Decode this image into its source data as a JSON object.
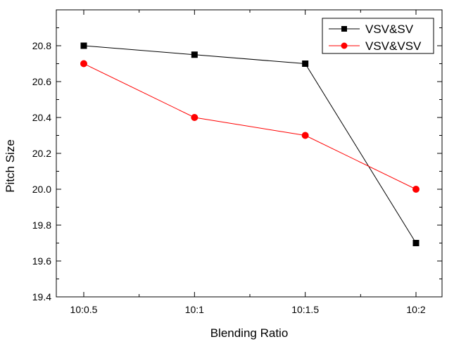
{
  "chart_data": {
    "type": "line",
    "title": "",
    "xlabel": "Blending Ratio",
    "ylabel": "Pitch Size",
    "categories": [
      "10:0.5",
      "10:1",
      "10:1.5",
      "10:2"
    ],
    "ylim": [
      19.4,
      21.0
    ],
    "yticks": [
      19.4,
      19.6,
      19.8,
      20.0,
      20.2,
      20.4,
      20.6,
      20.8
    ],
    "ytick_labels": [
      "19.4",
      "19.6",
      "19.8",
      "20.0",
      "20.2",
      "20.4",
      "20.6",
      "20.8"
    ],
    "grid": false,
    "legend_position": "top-right",
    "series": [
      {
        "name": "VSV&SV",
        "values": [
          20.8,
          20.75,
          20.7,
          19.7
        ],
        "color": "#000000",
        "marker": "square"
      },
      {
        "name": "VSV&VSV",
        "values": [
          20.7,
          20.4,
          20.3,
          20.0
        ],
        "color": "#ff0000",
        "marker": "circle"
      }
    ]
  }
}
